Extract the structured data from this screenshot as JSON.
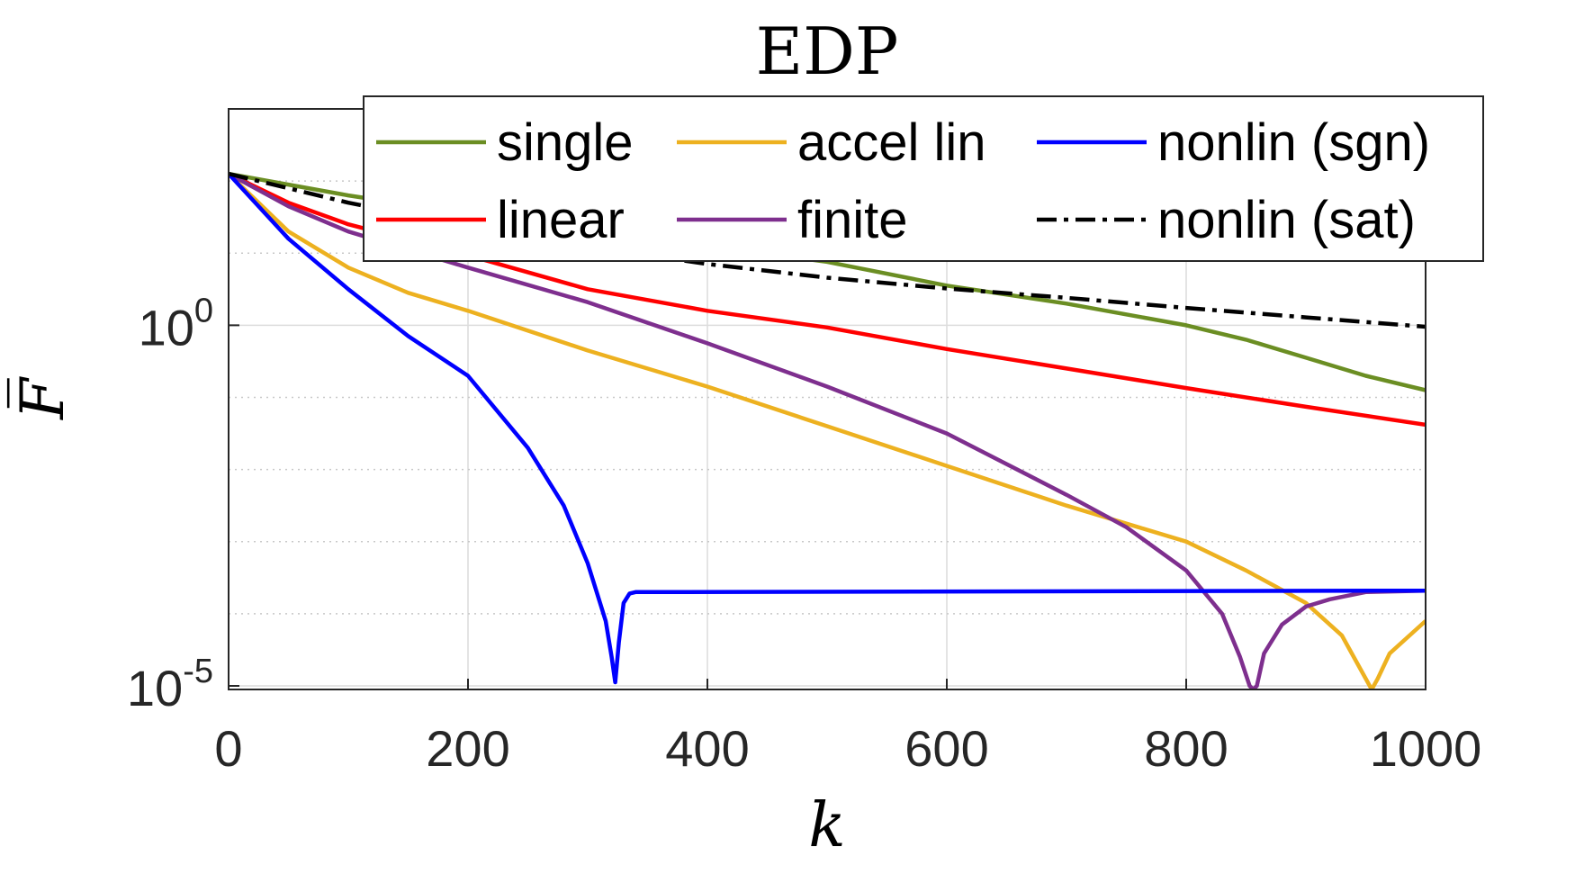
{
  "chart_data": {
    "type": "line",
    "title": "EDP",
    "xlabel": "k",
    "ylabel": "F̅",
    "x_scale": "linear",
    "y_scale": "log",
    "xlim": [
      0,
      1000
    ],
    "ylim_log10": [
      -5.05,
      3
    ],
    "x_ticks": [
      0,
      200,
      400,
      600,
      800,
      1000
    ],
    "x_tick_labels": [
      "0",
      "200",
      "400",
      "600",
      "800",
      "1000"
    ],
    "y_ticks_log10": [
      0,
      -5
    ],
    "y_tick_labels": [
      {
        "base": "10",
        "exp": "0"
      },
      {
        "base": "10",
        "exp": "-5"
      }
    ],
    "y_minor_grid_log10": [
      -4,
      -3,
      -2,
      -1,
      1,
      2
    ],
    "grid": true,
    "legend": {
      "position": "top-right",
      "columns": 3
    },
    "series": [
      {
        "name": "single",
        "color": "#6b8e23",
        "style": "solid",
        "x": [
          0,
          50,
          100,
          200,
          300,
          400,
          500,
          600,
          700,
          800,
          850,
          900,
          950,
          1000
        ],
        "log10_y": [
          2.1,
          1.95,
          1.8,
          1.55,
          1.3,
          1.1,
          0.88,
          0.55,
          0.3,
          0,
          -0.2,
          -0.45,
          -0.7,
          -0.9
        ]
      },
      {
        "name": "linear",
        "color": "#ff0000",
        "style": "solid",
        "x": [
          0,
          50,
          100,
          200,
          300,
          400,
          500,
          600,
          700,
          800,
          900,
          1000
        ],
        "log10_y": [
          2.1,
          1.7,
          1.4,
          0.97,
          0.5,
          0.2,
          -0.03,
          -0.33,
          -0.6,
          -0.87,
          -1.13,
          -1.38
        ]
      },
      {
        "name": "accel lin",
        "color": "#edb120",
        "style": "solid",
        "x": [
          0,
          50,
          100,
          150,
          200,
          300,
          400,
          500,
          600,
          700,
          760,
          800,
          850,
          900,
          930,
          950,
          955,
          960,
          970,
          1000
        ],
        "log10_y": [
          2.1,
          1.3,
          0.8,
          0.45,
          0.2,
          -0.35,
          -0.85,
          -1.4,
          -1.95,
          -2.5,
          -2.8,
          -3.0,
          -3.4,
          -3.85,
          -4.3,
          -4.9,
          -5.05,
          -4.9,
          -4.55,
          -4.1
        ]
      },
      {
        "name": "finite",
        "color": "#7e2f8e",
        "style": "solid",
        "x": [
          0,
          50,
          100,
          200,
          300,
          400,
          500,
          600,
          700,
          750,
          800,
          830,
          845,
          853,
          856,
          859,
          865,
          880,
          900,
          920,
          950,
          1000
        ],
        "log10_y": [
          2.1,
          1.65,
          1.3,
          0.8,
          0.32,
          -0.25,
          -0.85,
          -1.5,
          -2.35,
          -2.8,
          -3.4,
          -4.0,
          -4.6,
          -5.0,
          -5.05,
          -5.0,
          -4.55,
          -4.15,
          -3.9,
          -3.8,
          -3.7,
          -3.68
        ]
      },
      {
        "name": "nonlin (sgn)",
        "color": "#0000ff",
        "style": "solid",
        "x": [
          0,
          50,
          100,
          150,
          200,
          250,
          280,
          300,
          315,
          320,
          323,
          326,
          330,
          335,
          340,
          1000
        ],
        "log10_y": [
          2.1,
          1.2,
          0.5,
          -0.15,
          -0.7,
          -1.7,
          -2.5,
          -3.3,
          -4.1,
          -4.6,
          -4.95,
          -4.4,
          -3.85,
          -3.72,
          -3.7,
          -3.68
        ]
      },
      {
        "name": "nonlin (sat)",
        "color": "#000000",
        "style": "dashdot",
        "x": [
          0,
          100,
          200,
          300,
          400,
          500,
          600,
          700,
          800,
          900,
          1000
        ],
        "log10_y": [
          2.1,
          1.7,
          1.37,
          1.09,
          0.85,
          0.66,
          0.51,
          0.38,
          0.24,
          0.11,
          -0.02
        ]
      }
    ]
  }
}
